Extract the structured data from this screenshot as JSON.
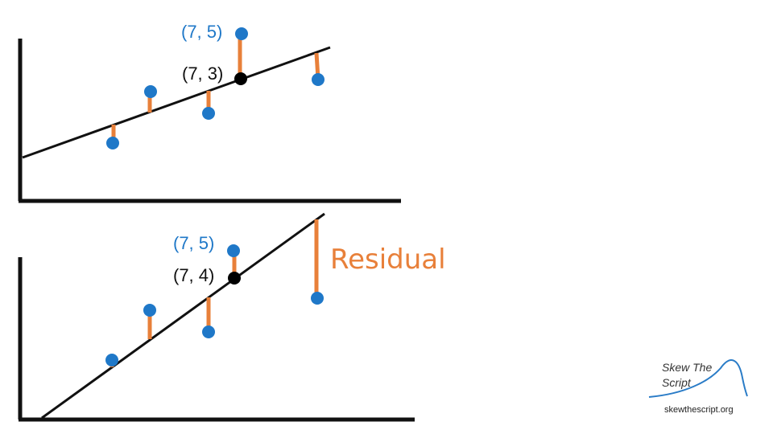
{
  "colors": {
    "point": "#1f78c8",
    "residual": "#e8803a",
    "line": "#111111",
    "predicted_point": "#000000",
    "label_blue": "#1f78c8",
    "label_dark": "#111111",
    "residual_word": "#e8803a",
    "logo_curve": "#2a7cc7"
  },
  "top_plot": {
    "actual_label": "(7, 5)",
    "predicted_label": "(7, 3)"
  },
  "bottom_plot": {
    "actual_label": "(7, 5)",
    "predicted_label": "(7, 4)",
    "residual_word": "Residual"
  },
  "logo": {
    "line1": "Skew The",
    "line2": "Script",
    "url": "skewthescript.org"
  }
}
